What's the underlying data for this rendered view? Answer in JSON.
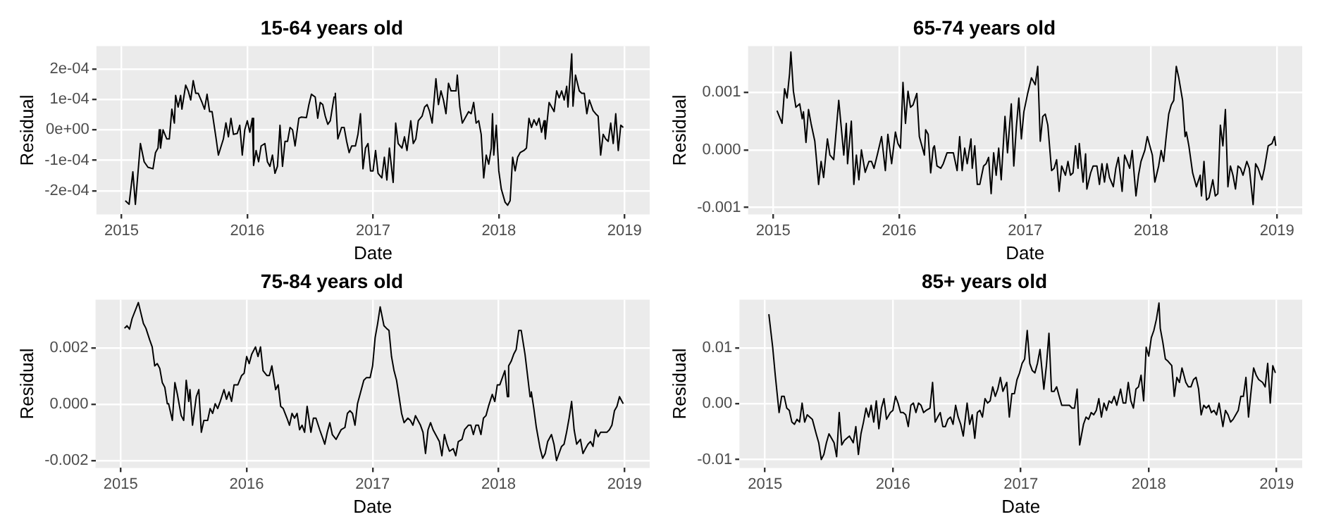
{
  "chart_data": [
    {
      "type": "line",
      "title": "15-64 years old",
      "xlabel": "Date",
      "ylabel": "Residual",
      "color": "#000000",
      "grid": true,
      "xlim": [
        2014.8,
        2019.2
      ],
      "xticks": [
        2015,
        2016,
        2017,
        2018,
        2019
      ],
      "ylim": [
        -0.000278,
        0.000275
      ],
      "yticks": [
        {
          "value": -0.0002,
          "label": "-2e-04"
        },
        {
          "value": -0.0001,
          "label": "-1e-04"
        },
        {
          "value": 0,
          "label": "0e+00"
        },
        {
          "value": 0.0001,
          "label": "1e-04"
        },
        {
          "value": 0.0002,
          "label": "2e-04"
        }
      ],
      "x": [
        2015.03,
        2015.06,
        2015.09,
        2015.11,
        2015.15,
        2015.18,
        2015.21,
        2015.25,
        2015.27,
        2015.29,
        2015.3,
        2015.31,
        2015.33,
        2015.36,
        2015.38,
        2015.4,
        2015.42,
        2015.43,
        2015.45,
        2015.47,
        2015.48,
        2015.51,
        2015.53,
        2015.55,
        2015.57,
        2015.59,
        2015.61,
        2015.64,
        2015.66,
        2015.68,
        2015.7,
        2015.72,
        2015.75,
        2015.77,
        2015.81,
        2015.83,
        2015.85,
        2015.87,
        2015.89,
        2015.92,
        2015.94,
        2015.96,
        2015.98,
        2016.0,
        2016.02,
        2016.04,
        2016.05,
        2016.07,
        2016.09,
        2016.11,
        2016.14,
        2016.16,
        2016.18,
        2016.2,
        2016.22,
        2016.24,
        2016.26,
        2016.28,
        2016.3,
        2016.32,
        2016.34,
        2016.36,
        2016.38,
        2016.41,
        2016.43,
        2016.47,
        2016.49,
        2016.51,
        2016.54,
        2016.56,
        2016.58,
        2016.6,
        2016.62,
        2016.64,
        2016.66,
        2016.69,
        2016.7,
        2016.72,
        2016.75,
        2016.77,
        2016.79,
        2016.81,
        2016.83,
        2016.86,
        2016.88,
        2016.9,
        2016.92,
        2016.94,
        2016.96,
        2016.98,
        2017.0,
        2017.02,
        2017.04,
        2017.07,
        2017.09,
        2017.11,
        2017.13,
        2017.16,
        2017.18,
        2017.2,
        2017.23,
        2017.25,
        2017.27,
        2017.3,
        2017.32,
        2017.34,
        2017.36,
        2017.39,
        2017.41,
        2017.43,
        2017.45,
        2017.47,
        2017.5,
        2017.52,
        2017.54,
        2017.56,
        2017.58,
        2017.6,
        2017.62,
        2017.64,
        2017.66,
        2017.67,
        2017.69,
        2017.71,
        2017.74,
        2017.76,
        2017.78,
        2017.8,
        2017.82,
        2017.84,
        2017.86,
        2017.88,
        2017.9,
        2017.92,
        2017.94,
        2017.95,
        2017.96,
        2017.98,
        2018.0,
        2018.02,
        2018.05,
        2018.07,
        2018.09,
        2018.11,
        2018.13,
        2018.15,
        2018.17,
        2018.2,
        2018.22,
        2018.24,
        2018.26,
        2018.28,
        2018.3,
        2018.32,
        2018.34,
        2018.36,
        2018.37,
        2018.4,
        2018.42,
        2018.44,
        2018.46,
        2018.48,
        2018.5,
        2018.52,
        2018.54,
        2018.55,
        2018.58,
        2018.59,
        2018.61,
        2018.64,
        2018.66,
        2018.68,
        2018.7,
        2018.72,
        2018.75,
        2018.77,
        2018.79,
        2018.81,
        2018.83,
        2018.85,
        2018.87,
        2018.89,
        2018.91,
        2018.93,
        2018.95,
        2018.97,
        2018.99
      ],
      "values": [
        -0.000233,
        -0.000245,
        -0.000138,
        -0.000245,
        -4.5e-05,
        -0.000105,
        -0.000123,
        -0.000128,
        -7.5e-05,
        -6e-05,
        0,
        -6e-05,
        0,
        -3e-05,
        -3e-05,
        6.8e-05,
        2.2e-05,
        0.000113,
        7.5e-05,
        0.000113,
        6.8e-05,
        0.000147,
        0.000128,
        9.8e-05,
        0.000162,
        0.00012,
        0.00012,
        9e-05,
        6.8e-05,
        0.000117,
        6e-05,
        6e-05,
        -2.3e-05,
        -8.3e-05,
        -3e-05,
        2.3e-05,
        -2.3e-05,
        3.8e-05,
        -1.5e-05,
        -1.2e-05,
        1.5e-05,
        -8.3e-05,
        0,
        3e-05,
        -8e-06,
        3.8e-05,
        -0.000117,
        -6.8e-05,
        -0.000105,
        -5.3e-05,
        -4.5e-05,
        -0.000105,
        -0.00012,
        -8.3e-05,
        -0.000143,
        -0.00012,
        1.5e-05,
        -0.00012,
        -3.8e-05,
        -3.8e-05,
        8e-06,
        0,
        -5.3e-05,
        3.8e-05,
        4.2e-05,
        4e-05,
        8.3e-05,
        0.000117,
        0.000108,
        3.8e-05,
        9e-05,
        8.3e-05,
        4.5e-05,
        1.8e-05,
        3e-05,
        0.000108,
        0.00012,
        -3e-05,
        8e-06,
        8e-06,
        -3.8e-05,
        -7.5e-05,
        -5.3e-05,
        -5.3e-05,
        -1.5e-05,
        5.3e-05,
        -0.000128,
        -6e-05,
        -4.5e-05,
        -0.000135,
        -0.000135,
        -6.8e-05,
        -0.000143,
        -0.000158,
        -9e-05,
        -0.000165,
        -6e-05,
        -0.000173,
        2.2e-05,
        -4.5e-05,
        -6e-05,
        -2.3e-05,
        -6.8e-05,
        3e-05,
        -4.5e-05,
        -3e-05,
        3e-05,
        4.5e-05,
        7.5e-05,
        8.3e-05,
        6e-05,
        2.2e-05,
        0.000168,
        8.3e-05,
        0.000128,
        9.8e-05,
        5.3e-05,
        0.000153,
        0.000128,
        0.000128,
        0.000128,
        0.00018,
        7.5e-05,
        2.2e-05,
        4.5e-05,
        6e-05,
        5.3e-05,
        9e-05,
        2.2e-05,
        3e-05,
        -1.5e-05,
        -0.000158,
        -8.3e-05,
        -0.000113,
        -6e-05,
        5.3e-05,
        -8.3e-05,
        1.5e-05,
        -0.000135,
        -0.000195,
        -0.000238,
        -0.000248,
        -0.000233,
        -9e-05,
        -0.000135,
        -9e-05,
        -7.5e-05,
        -6.8e-05,
        -6e-05,
        3.8e-05,
        8e-06,
        3.3e-05,
        1.5e-05,
        3.8e-05,
        -8e-06,
        3e-05,
        -3e-05,
        9e-05,
        7.5e-05,
        6e-05,
        0.000128,
        0.000105,
        0.000128,
        9.8e-05,
        0.000143,
        7.5e-05,
        0.00025,
        7.8e-05,
        0.00018,
        0.000128,
        0.00012,
        0.00012,
        5.3e-05,
        9.8e-05,
        6.3e-05,
        5.3e-05,
        4.5e-05,
        -8.3e-05,
        -1.5e-05,
        -3e-05,
        -3.8e-05,
        2.2e-05,
        -4.5e-05,
        5.3e-05,
        -6.8e-05,
        1.5e-05,
        8e-06
      ]
    },
    {
      "type": "line",
      "title": "65-74 years old",
      "xlabel": "Date",
      "ylabel": "Residual",
      "color": "#000000",
      "grid": true,
      "xlim": [
        2014.8,
        2019.2
      ],
      "xticks": [
        2015,
        2016,
        2017,
        2018,
        2019
      ],
      "ylim": [
        -0.00112,
        0.0018
      ],
      "yticks": [
        -0.001,
        {
          "value": 0,
          "label": "0.000"
        },
        0.001
      ],
      "x": [
        2015.03,
        2015.07,
        2015.09,
        2015.11,
        2015.13,
        2015.14,
        2015.16,
        2015.18,
        2015.21,
        2015.23,
        2015.24,
        2015.26,
        2015.28,
        2015.3,
        2015.33,
        2015.34,
        2015.36,
        2015.38,
        2015.4,
        2015.43,
        2015.45,
        2015.48,
        2015.52,
        2015.54,
        2015.56,
        2015.58,
        2015.59,
        2015.62,
        2015.64,
        2015.66,
        2015.68,
        2015.7,
        2015.73,
        2015.76,
        2015.78,
        2015.8,
        2015.83,
        2015.86,
        2015.89,
        2015.91,
        2015.94,
        2015.97,
        2015.99,
        2016.01,
        2016.03,
        2016.05,
        2016.07,
        2016.09,
        2016.11,
        2016.14,
        2016.16,
        2016.18,
        2016.2,
        2016.21,
        2016.23,
        2016.25,
        2016.27,
        2016.28,
        2016.3,
        2016.33,
        2016.35,
        2016.38,
        2016.4,
        2016.43,
        2016.46,
        2016.48,
        2016.5,
        2016.52,
        2016.54,
        2016.57,
        2016.58,
        2016.6,
        2016.62,
        2016.64,
        2016.67,
        2016.69,
        2016.71,
        2016.73,
        2016.75,
        2016.77,
        2016.79,
        2016.81,
        2016.84,
        2016.86,
        2016.89,
        2016.91,
        2016.93,
        2016.95,
        2016.97,
        2016.99,
        2017.02,
        2017.05,
        2017.08,
        2017.1,
        2017.12,
        2017.14,
        2017.16,
        2017.18,
        2017.21,
        2017.23,
        2017.25,
        2017.27,
        2017.29,
        2017.32,
        2017.34,
        2017.36,
        2017.38,
        2017.4,
        2017.42,
        2017.43,
        2017.46,
        2017.48,
        2017.49,
        2017.52,
        2017.54,
        2017.57,
        2017.59,
        2017.61,
        2017.63,
        2017.65,
        2017.67,
        2017.7,
        2017.72,
        2017.74,
        2017.77,
        2017.79,
        2017.81,
        2017.83,
        2017.85,
        2017.88,
        2017.9,
        2017.92,
        2017.95,
        2017.97,
        2017.99,
        2018.01,
        2018.03,
        2018.06,
        2018.08,
        2018.1,
        2018.12,
        2018.14,
        2018.16,
        2018.18,
        2018.2,
        2018.22,
        2018.25,
        2018.27,
        2018.28,
        2018.3,
        2018.33,
        2018.36,
        2018.39,
        2018.4,
        2018.42,
        2018.44,
        2018.46,
        2018.49,
        2018.51,
        2018.53,
        2018.55,
        2018.57,
        2018.59,
        2018.61,
        2018.63,
        2018.65,
        2018.67,
        2018.69,
        2018.71,
        2018.73,
        2018.76,
        2018.78,
        2018.81,
        2018.83,
        2018.85,
        2018.88,
        2018.9,
        2018.93,
        2018.96,
        2018.98,
        2018.99
      ],
      "values": [
        0.00068,
        0.00046,
        0.00106,
        0.0009,
        0.00133,
        0.0017,
        0.00102,
        0.00074,
        0.0008,
        0.00054,
        0.00066,
        0.00013,
        0.0007,
        0.00046,
        0.00015,
        -9e-05,
        -0.0006,
        -0.0002,
        -0.00048,
        0.00019,
        -9e-05,
        -0.00017,
        0.00086,
        0.00039,
        -9e-05,
        0.00046,
        -0.00024,
        0.0005,
        -0.0006,
        -9e-05,
        -0.00052,
        0,
        -0.00039,
        -0.0002,
        -0.0002,
        -0.00032,
        -5e-05,
        0.00023,
        -0.00036,
        0.00027,
        -0.00024,
        0.00031,
        0.00011,
        3e-05,
        0.00117,
        0.00046,
        0.00102,
        0.00074,
        0.00078,
        0.00098,
        0.00023,
        7e-05,
        -9e-05,
        0.00035,
        0.00027,
        -0.0004,
        3e-05,
        7e-05,
        -0.00028,
        -0.00032,
        -0.00024,
        -5e-05,
        -5e-05,
        -5e-05,
        -0.00036,
        0.00023,
        -0.00036,
        3e-05,
        -0.00024,
        0.00019,
        -0.00032,
        7e-05,
        -0.0006,
        -0.0006,
        -0.00028,
        -0.00024,
        -0.00013,
        -0.00076,
        -5e-05,
        -0.00044,
        3e-05,
        -0.00052,
        0.00058,
        -5e-05,
        0.0008,
        -0.00028,
        0.00039,
        0.0009,
        0.00019,
        0.00066,
        0.00098,
        0.00125,
        0.00113,
        0.00145,
        0.00015,
        0.00058,
        0.00062,
        0.00043,
        -0.00036,
        -0.00032,
        -0.00017,
        -0.00072,
        -0.00028,
        -0.00044,
        -0.0002,
        -0.00044,
        -0.0004,
        7e-05,
        -0.00032,
        0.00011,
        -0.00056,
        -7e-05,
        -0.00068,
        -0.0004,
        -0.00028,
        -0.00028,
        -0.0006,
        -0.00024,
        -0.00056,
        -0.00024,
        -0.00048,
        -0.00064,
        -0.00032,
        -0.00013,
        -0.00072,
        -9e-05,
        -0.0002,
        -0.00032,
        -1e-05,
        -0.0008,
        -0.00044,
        -0.0002,
        -1e-05,
        0.00023,
        7e-05,
        -9e-05,
        -0.00056,
        -0.00028,
        -1e-05,
        -0.0002,
        0.00023,
        0.00062,
        0.00078,
        0.00086,
        0.00145,
        0.00125,
        0.00086,
        0.00023,
        0.00031,
        7e-05,
        -0.0004,
        -0.00064,
        -0.00044,
        -0.0008,
        -0.0002,
        -0.00087,
        -0.00083,
        -0.00052,
        -0.0008,
        -0.00076,
        0.00043,
        7e-05,
        0.0007,
        -0.00064,
        -0.00028,
        -0.00044,
        -0.00068,
        -0.00028,
        -0.00032,
        -0.00044,
        -0.0002,
        -0.00032,
        -0.00095,
        -0.00024,
        -0.00032,
        -0.00052,
        -0.00032,
        7e-05,
        0.00011,
        0.00023,
        7e-05
      ]
    },
    {
      "type": "line",
      "title": "75-84 years old",
      "xlabel": "Date",
      "ylabel": "Residual",
      "color": "#000000",
      "grid": true,
      "xlim": [
        2014.8,
        2019.2
      ],
      "xticks": [
        2015,
        2016,
        2017,
        2018,
        2019
      ],
      "ylim": [
        -0.00225,
        0.0037
      ],
      "yticks": [
        -0.002,
        {
          "value": 0,
          "label": "0.000"
        },
        0.002
      ],
      "x": [
        2015.03,
        2015.05,
        2015.07,
        2015.09,
        2015.14,
        2015.18,
        2015.2,
        2015.23,
        2015.25,
        2015.27,
        2015.29,
        2015.31,
        2015.33,
        2015.35,
        2015.37,
        2015.38,
        2015.41,
        2015.43,
        2015.45,
        2015.48,
        2015.5,
        2015.52,
        2015.54,
        2015.55,
        2015.57,
        2015.6,
        2015.62,
        2015.64,
        2015.66,
        2015.69,
        2015.71,
        2015.73,
        2015.75,
        2015.77,
        2015.79,
        2015.82,
        2015.84,
        2015.86,
        2015.88,
        2015.9,
        2015.93,
        2015.96,
        2015.98,
        2016.0,
        2016.02,
        2016.04,
        2016.07,
        2016.09,
        2016.11,
        2016.13,
        2016.16,
        2016.18,
        2016.2,
        2016.23,
        2016.25,
        2016.27,
        2016.29,
        2016.32,
        2016.34,
        2016.36,
        2016.38,
        2016.4,
        2016.42,
        2016.44,
        2016.46,
        2016.48,
        2016.51,
        2016.53,
        2016.55,
        2016.58,
        2016.6,
        2016.62,
        2016.64,
        2016.66,
        2016.68,
        2016.71,
        2016.73,
        2016.75,
        2016.78,
        2016.8,
        2016.82,
        2016.84,
        2016.86,
        2016.88,
        2016.9,
        2016.93,
        2016.95,
        2016.98,
        2017.0,
        2017.02,
        2017.04,
        2017.06,
        2017.09,
        2017.11,
        2017.13,
        2017.15,
        2017.17,
        2017.19,
        2017.21,
        2017.23,
        2017.25,
        2017.28,
        2017.3,
        2017.32,
        2017.34,
        2017.36,
        2017.38,
        2017.4,
        2017.42,
        2017.44,
        2017.46,
        2017.48,
        2017.51,
        2017.53,
        2017.55,
        2017.57,
        2017.59,
        2017.61,
        2017.64,
        2017.66,
        2017.68,
        2017.71,
        2017.73,
        2017.76,
        2017.78,
        2017.8,
        2017.82,
        2017.84,
        2017.86,
        2017.88,
        2017.9,
        2017.92,
        2017.95,
        2017.97,
        2017.99,
        2018.01,
        2018.03,
        2018.05,
        2018.07,
        2018.08,
        2018.1,
        2018.12,
        2018.14,
        2018.16,
        2018.18,
        2018.21,
        2018.23,
        2018.25,
        2018.26,
        2018.28,
        2018.3,
        2018.33,
        2018.35,
        2018.37,
        2018.39,
        2018.42,
        2018.44,
        2018.46,
        2018.48,
        2018.5,
        2018.52,
        2018.54,
        2018.56,
        2018.58,
        2018.6,
        2018.62,
        2018.65,
        2018.67,
        2018.69,
        2018.71,
        2018.73,
        2018.75,
        2018.77,
        2018.79,
        2018.81,
        2018.83,
        2018.86,
        2018.88,
        2018.9,
        2018.92,
        2018.94,
        2018.96,
        2018.98,
        2018.99
      ],
      "values": [
        0.00269,
        0.00278,
        0.00266,
        0.00303,
        0.0036,
        0.00286,
        0.00269,
        0.00228,
        0.00203,
        0.00136,
        0.00144,
        0.00127,
        0.00077,
        0.0006,
        2e-05,
        2e-05,
        -0.00057,
        0.00077,
        0.00035,
        -0.0004,
        -0.00057,
        0.00085,
        0.0001,
        0.00052,
        -0.00074,
        0.00027,
        0.00052,
        -0.00099,
        -0.00057,
        -0.00057,
        -0.00015,
        -0.00032,
        2e-05,
        -0.00015,
        0.0001,
        0.00052,
        0.00018,
        0.00044,
        0.0001,
        0.00069,
        0.00069,
        0.00102,
        0.0011,
        0.00169,
        0.00144,
        0.00177,
        0.00203,
        0.00169,
        0.00203,
        0.00119,
        0.00102,
        0.00102,
        0.00136,
        0.00052,
        0.00069,
        -7e-05,
        -0.00015,
        -0.00049,
        -0.00074,
        -0.00032,
        -0.00049,
        -0.00032,
        -0.0009,
        -0.00074,
        -0.00099,
        -7e-05,
        -0.00099,
        -0.00049,
        -0.00049,
        -0.0009,
        -0.00115,
        -0.00141,
        -0.00099,
        -0.00065,
        -0.00107,
        -0.00124,
        -0.00107,
        -0.0009,
        -0.00082,
        -0.00032,
        -0.00023,
        -0.00032,
        -0.00074,
        2e-05,
        0.00035,
        0.00085,
        0.00094,
        0.00094,
        0.00136,
        0.00236,
        0.00286,
        0.00345,
        0.00278,
        0.00269,
        0.00261,
        0.00169,
        0.00119,
        0.00085,
        0.00027,
        -0.00032,
        -0.00065,
        -0.00049,
        -0.00057,
        -0.00074,
        -0.0004,
        -0.00057,
        -0.00074,
        -0.00099,
        -0.00174,
        -0.0009,
        -0.00065,
        -0.0009,
        -0.00115,
        -0.00132,
        -0.00182,
        -0.00107,
        -0.00141,
        -0.00166,
        -0.00157,
        -0.00182,
        -0.00132,
        -0.00124,
        -0.0009,
        -0.00074,
        -0.00074,
        -0.00107,
        -0.00074,
        -0.00074,
        -0.00107,
        -0.00049,
        -0.0004,
        -7e-05,
        0.00035,
        0.0001,
        0.00069,
        0.00069,
        0.00094,
        0.00119,
        0.00027,
        0.00136,
        0.00152,
        0.00177,
        0.00194,
        0.00261,
        0.00261,
        0.00177,
        0.00102,
        0.00027,
        0.00044,
        -0.00015,
        -0.00082,
        -0.00157,
        -0.00191,
        -0.00174,
        -0.00132,
        -0.00107,
        -0.00141,
        -0.00199,
        -0.00174,
        -0.00149,
        -0.00141,
        -0.00099,
        -0.00049,
        0.0001,
        -0.0009,
        -0.00141,
        -0.00124,
        -0.00174,
        -0.00157,
        -0.00141,
        -0.00132,
        -0.00149,
        -0.0009,
        -0.00115,
        -0.00099,
        -0.00099,
        -0.00099,
        -0.0009,
        -0.00074,
        -0.00023,
        -7e-05,
        0.00027,
        0.0001,
        2e-05
      ]
    },
    {
      "type": "line",
      "title": "85+ years old",
      "xlabel": "Date",
      "ylabel": "Residual",
      "color": "#000000",
      "grid": true,
      "xlim": [
        2014.8,
        2019.2
      ],
      "xticks": [
        2015,
        2016,
        2017,
        2018,
        2019
      ],
      "ylim": [
        -0.0115,
        0.0186
      ],
      "yticks": [
        -0.01,
        {
          "value": 0,
          "label": "0.00"
        },
        0.01
      ],
      "x": [
        2015.03,
        2015.06,
        2015.08,
        2015.11,
        2015.13,
        2015.15,
        2015.17,
        2015.19,
        2015.21,
        2015.23,
        2015.25,
        2015.27,
        2015.29,
        2015.31,
        2015.33,
        2015.35,
        2015.37,
        2015.4,
        2015.42,
        2015.44,
        2015.46,
        2015.48,
        2015.5,
        2015.52,
        2015.54,
        2015.56,
        2015.58,
        2015.6,
        2015.62,
        2015.64,
        2015.66,
        2015.69,
        2015.71,
        2015.73,
        2015.75,
        2015.77,
        2015.79,
        2015.81,
        2015.83,
        2015.85,
        2015.87,
        2015.89,
        2015.91,
        2015.93,
        2015.95,
        2015.98,
        2016.0,
        2016.02,
        2016.04,
        2016.06,
        2016.08,
        2016.1,
        2016.12,
        2016.14,
        2016.16,
        2016.18,
        2016.2,
        2016.22,
        2016.24,
        2016.26,
        2016.29,
        2016.31,
        2016.33,
        2016.35,
        2016.37,
        2016.39,
        2016.41,
        2016.43,
        2016.45,
        2016.47,
        2016.49,
        2016.51,
        2016.53,
        2016.55,
        2016.58,
        2016.6,
        2016.62,
        2016.64,
        2016.66,
        2016.68,
        2016.7,
        2016.72,
        2016.74,
        2016.76,
        2016.78,
        2016.8,
        2016.82,
        2016.84,
        2016.86,
        2016.89,
        2016.91,
        2016.93,
        2016.95,
        2016.97,
        2016.99,
        2017.01,
        2017.03,
        2017.05,
        2017.07,
        2017.09,
        2017.11,
        2017.13,
        2017.15,
        2017.18,
        2017.2,
        2017.22,
        2017.24,
        2017.26,
        2017.28,
        2017.3,
        2017.32,
        2017.34,
        2017.36,
        2017.38,
        2017.4,
        2017.42,
        2017.44,
        2017.46,
        2017.49,
        2017.51,
        2017.53,
        2017.55,
        2017.57,
        2017.59,
        2017.61,
        2017.63,
        2017.65,
        2017.67,
        2017.69,
        2017.71,
        2017.73,
        2017.75,
        2017.78,
        2017.8,
        2017.82,
        2017.84,
        2017.86,
        2017.88,
        2017.9,
        2017.92,
        2017.94,
        2017.96,
        2017.98,
        2018.0,
        2018.02,
        2018.04,
        2018.06,
        2018.08,
        2018.09,
        2018.11,
        2018.13,
        2018.15,
        2018.18,
        2018.2,
        2018.22,
        2018.24,
        2018.26,
        2018.29,
        2018.31,
        2018.33,
        2018.35,
        2018.37,
        2018.39,
        2018.41,
        2018.43,
        2018.45,
        2018.47,
        2018.49,
        2018.51,
        2018.53,
        2018.55,
        2018.58,
        2018.6,
        2018.62,
        2018.64,
        2018.66,
        2018.68,
        2018.7,
        2018.72,
        2018.74,
        2018.76,
        2018.78,
        2018.8,
        2018.82,
        2018.84,
        2018.86,
        2018.89,
        2018.91,
        2018.93,
        2018.95,
        2018.97,
        2018.99
      ],
      "values": [
        0.016,
        0.0101,
        0.0051,
        -0.0016,
        0.0013,
        0.0013,
        -0.0008,
        -0.0012,
        -0.0033,
        -0.0037,
        -0.0028,
        -0.0033,
        0.0001,
        -0.0033,
        -0.002,
        -0.0024,
        -0.0028,
        -0.0054,
        -0.007,
        -0.01,
        -0.0091,
        -0.007,
        -0.0054,
        -0.0062,
        -0.007,
        -0.0095,
        -0.0016,
        -0.0074,
        -0.0066,
        -0.0062,
        -0.0058,
        -0.007,
        -0.0041,
        -0.0091,
        -0.0054,
        -0.0033,
        -0.0008,
        -0.0024,
        -0.0003,
        -0.0033,
        0.0005,
        -0.0045,
        -0.0008,
        0.0009,
        -0.0028,
        -0.0016,
        -0.0012,
        0.0013,
        0.0001,
        -0.0016,
        -0.0016,
        -0.002,
        -0.0041,
        -0.0003,
        0.0001,
        -0.0016,
        0.0001,
        -0.0003,
        -0.0016,
        -0.0012,
        -0.0008,
        0.0038,
        -0.0033,
        -0.0024,
        -0.0016,
        -0.0041,
        -0.0041,
        -0.0028,
        -0.0024,
        -0.0037,
        -0.0003,
        -0.0024,
        -0.0037,
        -0.0058,
        0.0001,
        -0.0037,
        -0.002,
        -0.0062,
        -0.0016,
        -0.0012,
        -0.0024,
        0.0009,
        0.0001,
        0.0005,
        0.003,
        0.0013,
        0.0026,
        0.0047,
        0.0022,
        0.0038,
        -0.0024,
        0.0018,
        0.0018,
        0.0043,
        0.0055,
        0.0072,
        0.008,
        0.0131,
        0.0072,
        0.0059,
        0.0055,
        0.0072,
        0.0097,
        0.0026,
        0.0068,
        0.0126,
        0.0022,
        0.0022,
        0.003,
        0.0013,
        -0.0003,
        -0.0003,
        -0.0003,
        -0.0003,
        -0.0008,
        -0.0008,
        0.0026,
        -0.0074,
        -0.0037,
        -0.0024,
        -0.0028,
        -0.0016,
        -0.002,
        -0.0012,
        0.0009,
        -0.0024,
        0.0001,
        -0.0012,
        0.0005,
        0.0001,
        0.0013,
        -0.0003,
        0.0026,
        0.0001,
        0.0001,
        0.0038,
        0.0005,
        -0.0008,
        0.0026,
        0.003,
        0.0051,
        0.0005,
        0.0101,
        0.0085,
        0.0118,
        0.0131,
        0.0151,
        0.018,
        0.0135,
        0.011,
        0.008,
        0.0076,
        0.0068,
        0.0013,
        0.0047,
        0.0038,
        0.0064,
        0.0038,
        0.003,
        0.003,
        0.0043,
        0.0047,
        0.0026,
        -0.002,
        -0.0003,
        -0.0008,
        -0.0003,
        -0.0016,
        -0.0012,
        -0.002,
        0.0001,
        -0.0041,
        -0.0012,
        -0.002,
        -0.0033,
        -0.0028,
        -0.002,
        -0.0012,
        0.0013,
        0.0013,
        0.0047,
        -0.0024,
        0.0022,
        0.0064,
        0.0051,
        0.0043,
        0.0038,
        0.003,
        0.0072,
        0.0001,
        0.0068,
        0.0055
      ]
    }
  ]
}
